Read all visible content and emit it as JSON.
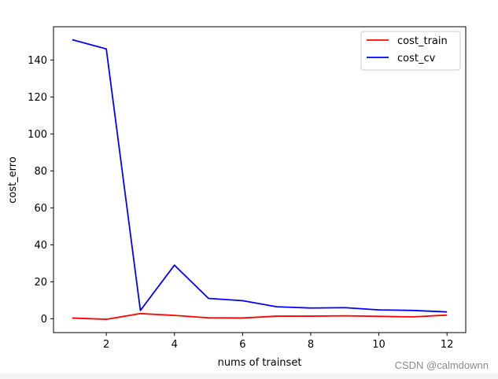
{
  "chart_data": {
    "type": "line",
    "title": "",
    "xlabel": "nums of trainset",
    "ylabel": "cost_erro",
    "xlim": [
      0.45,
      12.55
    ],
    "ylim": [
      -7.5,
      158
    ],
    "xticks": [
      2,
      4,
      6,
      8,
      10,
      12
    ],
    "yticks": [
      0,
      20,
      40,
      60,
      80,
      100,
      120,
      140
    ],
    "grid": false,
    "legend_position": "upper-right",
    "x": [
      1,
      2,
      3,
      4,
      5,
      6,
      7,
      8,
      9,
      10,
      11,
      12
    ],
    "series": [
      {
        "name": "cost_train",
        "color": "#ff0000",
        "values": [
          0.4,
          -0.3,
          2.8,
          1.8,
          0.5,
          0.4,
          1.4,
          1.4,
          1.6,
          1.3,
          1.0,
          2.0
        ]
      },
      {
        "name": "cost_cv",
        "color": "#0000ff",
        "values": [
          151,
          146,
          4.5,
          29,
          11,
          9.8,
          6.5,
          5.8,
          6.0,
          4.8,
          4.5,
          3.7
        ]
      }
    ]
  },
  "watermark": "CSDN @calmdownn"
}
